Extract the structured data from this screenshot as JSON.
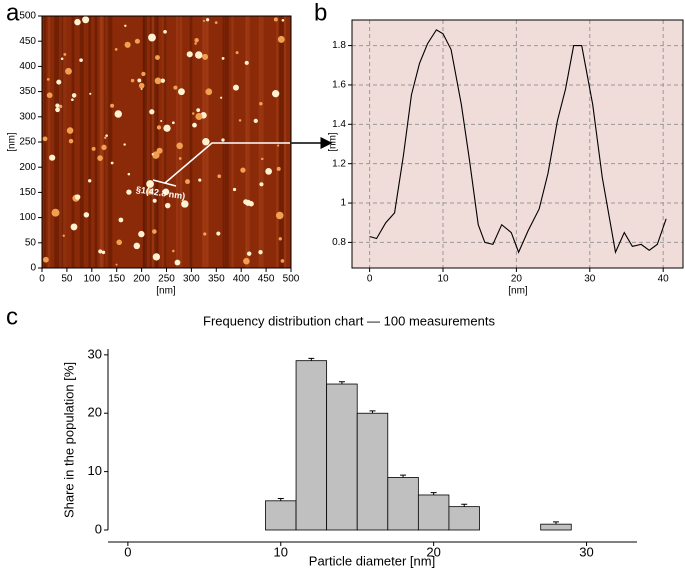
{
  "chart_data": [
    {
      "type": "image",
      "panel_label": "a",
      "xlabel": "[nm]",
      "ylabel": "[nm]",
      "annotation": "§1(42.8 nm)",
      "xlim": [
        0,
        500
      ],
      "xticks": [
        0,
        50,
        100,
        150,
        200,
        250,
        300,
        350,
        400,
        450,
        500
      ],
      "ylim": [
        0,
        500
      ],
      "yticks": [
        0,
        50,
        100,
        150,
        200,
        250,
        300,
        350,
        400,
        450,
        500
      ]
    },
    {
      "type": "line",
      "panel_label": "b",
      "xlabel": "[nm]",
      "ylabel": "[nm]",
      "grid": true,
      "color": "#000000",
      "x": [
        0,
        0.95,
        2.2,
        3.4,
        4.6,
        5.7,
        6.8,
        7.9,
        9.1,
        10.0,
        11.1,
        12.5,
        13.6,
        14.8,
        15.7,
        16.8,
        18.0,
        19.3,
        20.3,
        21.6,
        23.1,
        24.3,
        25.6,
        26.7,
        27.8,
        28.9,
        30.4,
        31.7,
        33.5,
        34.7,
        35.8,
        37.0,
        38.1,
        39.2,
        40.4
      ],
      "values": [
        0.83,
        0.82,
        0.9,
        0.95,
        1.24,
        1.55,
        1.71,
        1.81,
        1.88,
        1.86,
        1.78,
        1.5,
        1.22,
        0.89,
        0.8,
        0.79,
        0.89,
        0.85,
        0.75,
        0.86,
        0.97,
        1.15,
        1.42,
        1.58,
        1.8,
        1.8,
        1.5,
        1.13,
        0.75,
        0.85,
        0.78,
        0.79,
        0.76,
        0.79,
        0.92
      ],
      "xlim": [
        -2.4,
        42.7
      ],
      "xticks": [
        0,
        10,
        20,
        30,
        40
      ],
      "ylim": [
        0.67,
        1.93
      ],
      "yticks": [
        0.8,
        1.0,
        1.2,
        1.4,
        1.6,
        1.8
      ]
    },
    {
      "type": "histogram",
      "panel_label": "c",
      "title": "Frequency distribution chart — 100 measurements",
      "xlabel": "Particle diameter [nm]",
      "ylabel": "Share in the population [%]",
      "color": "#c0c0c0",
      "bins": [
        9,
        11,
        13,
        15,
        17,
        19,
        21,
        23,
        25,
        27,
        29
      ],
      "counts": [
        5,
        29,
        25,
        20,
        9,
        6,
        4,
        0,
        0,
        1
      ],
      "errors": [
        0.4,
        0.4,
        0.4,
        0.4,
        0.4,
        0.4,
        0.4,
        null,
        null,
        0.4
      ],
      "xlim": [
        -1.3,
        33.3
      ],
      "xticks": [
        0,
        10,
        20,
        30
      ],
      "ylim": [
        0,
        31
      ],
      "yticks": [
        0,
        10,
        20,
        30
      ]
    }
  ]
}
